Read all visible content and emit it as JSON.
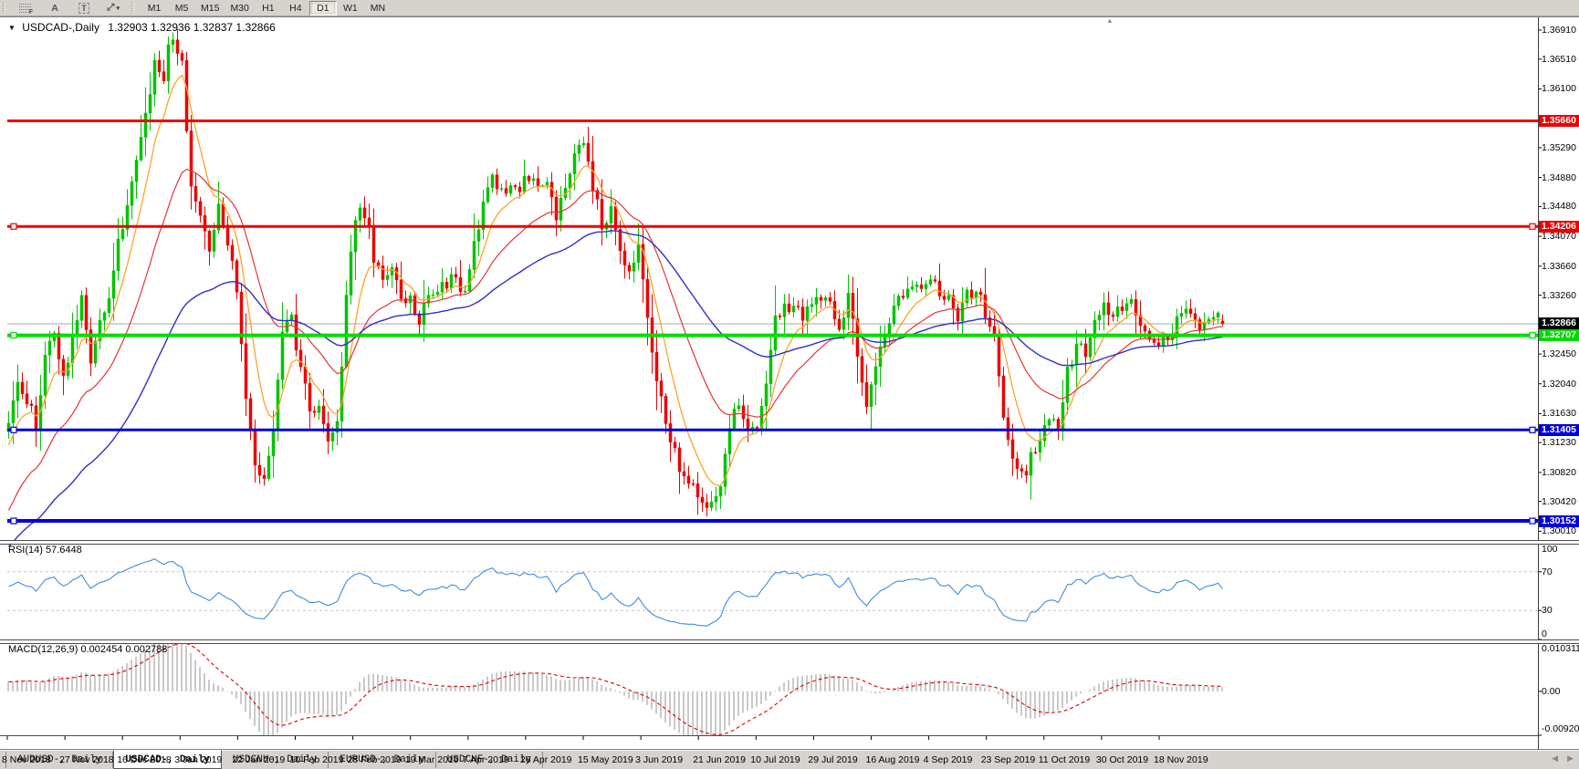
{
  "toolbar": {
    "tools": [
      {
        "name": "fibonacci-tool",
        "glyph": "F"
      },
      {
        "name": "text-label-tool",
        "glyph": "A"
      },
      {
        "name": "text-tool",
        "glyph": "T"
      },
      {
        "name": "arrows-tool",
        "glyph": "⤢",
        "caret": "▾"
      }
    ],
    "timeframes": [
      {
        "label": "M1",
        "active": false
      },
      {
        "label": "M5",
        "active": false
      },
      {
        "label": "M15",
        "active": false
      },
      {
        "label": "M30",
        "active": false
      },
      {
        "label": "H1",
        "active": false
      },
      {
        "label": "H4",
        "active": false
      },
      {
        "label": "D1",
        "active": true
      },
      {
        "label": "W1",
        "active": false
      },
      {
        "label": "MN",
        "active": false
      }
    ]
  },
  "chart": {
    "title": {
      "dropdown_glyph": "▼",
      "symbol": "USDCAD-,Daily",
      "ohlc": "1.32903 1.32936 1.32837 1.32866"
    },
    "shift_marker_glyph": "▲",
    "price_axis": {
      "ticks": [
        "1.36910",
        "1.36510",
        "1.36100",
        "1.35290",
        "1.34880",
        "1.34480",
        "1.34070",
        "1.33660",
        "1.33260",
        "1.32450",
        "1.32040",
        "1.31630",
        "1.31230",
        "1.30820",
        "1.30420",
        "1.30010"
      ]
    },
    "date_axis": {
      "labels": [
        "8 Nov 2018",
        "27 Nov 2018",
        "16 Dec 2018",
        "3 Jan 2019",
        "22 Jan 2019",
        "10 Feb 2019",
        "28 Feb 2019",
        "19 Mar 2019",
        "7 Apr 2019",
        "26 Apr 2019",
        "15 May 2019",
        "3 Jun 2019",
        "21 Jun 2019",
        "10 Jul 2019",
        "29 Jul 2019",
        "16 Aug 2019",
        "4 Sep 2019",
        "23 Sep 2019",
        "11 Oct 2019",
        "30 Oct 2019",
        "18 Nov 2019"
      ]
    }
  },
  "chart_data": {
    "type": "candlestick",
    "symbol": "USDCAD-",
    "timeframe": "Daily",
    "bars": 267,
    "last_bar": {
      "open": 1.32903,
      "high": 1.32936,
      "low": 1.32837,
      "close": 1.32866
    },
    "ylim": [
      1.29889,
      1.3706
    ],
    "price_path": [
      [
        0,
        1.315
      ],
      [
        2,
        1.3215
      ],
      [
        4,
        1.3185
      ],
      [
        6,
        1.315
      ],
      [
        8,
        1.324
      ],
      [
        10,
        1.328
      ],
      [
        12,
        1.3215
      ],
      [
        14,
        1.327
      ],
      [
        16,
        1.333
      ],
      [
        18,
        1.3225
      ],
      [
        20,
        1.329
      ],
      [
        22,
        1.333
      ],
      [
        24,
        1.3395
      ],
      [
        26,
        1.344
      ],
      [
        28,
        1.351
      ],
      [
        30,
        1.358
      ],
      [
        32,
        1.364
      ],
      [
        34,
        1.362
      ],
      [
        35,
        1.3675
      ],
      [
        37,
        1.366
      ],
      [
        38,
        1.364
      ],
      [
        40,
        1.3475
      ],
      [
        42,
        1.3445
      ],
      [
        44,
        1.338
      ],
      [
        46,
        1.3445
      ],
      [
        48,
        1.34
      ],
      [
        50,
        1.333
      ],
      [
        52,
        1.318
      ],
      [
        54,
        1.309
      ],
      [
        56,
        1.3065
      ],
      [
        58,
        1.315
      ],
      [
        60,
        1.328
      ],
      [
        62,
        1.329
      ],
      [
        64,
        1.323
      ],
      [
        66,
        1.317
      ],
      [
        68,
        1.317
      ],
      [
        70,
        1.3125
      ],
      [
        72,
        1.3145
      ],
      [
        74,
        1.332
      ],
      [
        76,
        1.3435
      ],
      [
        78,
        1.344
      ],
      [
        80,
        1.338
      ],
      [
        82,
        1.3345
      ],
      [
        84,
        1.3355
      ],
      [
        86,
        1.333
      ],
      [
        88,
        1.332
      ],
      [
        90,
        1.3295
      ],
      [
        92,
        1.332
      ],
      [
        94,
        1.3335
      ],
      [
        96,
        1.3345
      ],
      [
        98,
        1.335
      ],
      [
        100,
        1.333
      ],
      [
        102,
        1.34
      ],
      [
        104,
        1.345
      ],
      [
        106,
        1.3485
      ],
      [
        108,
        1.347
      ],
      [
        110,
        1.347
      ],
      [
        112,
        1.3478
      ],
      [
        114,
        1.349
      ],
      [
        116,
        1.3482
      ],
      [
        118,
        1.348
      ],
      [
        120,
        1.3438
      ],
      [
        122,
        1.348
      ],
      [
        124,
        1.3525
      ],
      [
        126,
        1.353
      ],
      [
        128,
        1.3478
      ],
      [
        130,
        1.342
      ],
      [
        132,
        1.3442
      ],
      [
        134,
        1.338
      ],
      [
        136,
        1.335
      ],
      [
        138,
        1.34
      ],
      [
        140,
        1.329
      ],
      [
        142,
        1.321
      ],
      [
        144,
        1.315
      ],
      [
        146,
        1.311
      ],
      [
        148,
        1.3072
      ],
      [
        150,
        1.3062
      ],
      [
        152,
        1.3037
      ],
      [
        154,
        1.3048
      ],
      [
        156,
        1.3065
      ],
      [
        158,
        1.314
      ],
      [
        160,
        1.318
      ],
      [
        162,
        1.3148
      ],
      [
        164,
        1.3152
      ],
      [
        166,
        1.3212
      ],
      [
        168,
        1.329
      ],
      [
        170,
        1.332
      ],
      [
        172,
        1.3302
      ],
      [
        174,
        1.33
      ],
      [
        176,
        1.332
      ],
      [
        178,
        1.3312
      ],
      [
        180,
        1.3322
      ],
      [
        182,
        1.327
      ],
      [
        184,
        1.3335
      ],
      [
        186,
        1.325
      ],
      [
        188,
        1.317
      ],
      [
        190,
        1.3225
      ],
      [
        192,
        1.327
      ],
      [
        194,
        1.332
      ],
      [
        196,
        1.3325
      ],
      [
        198,
        1.334
      ],
      [
        200,
        1.333
      ],
      [
        202,
        1.3342
      ],
      [
        204,
        1.3332
      ],
      [
        206,
        1.332
      ],
      [
        208,
        1.33
      ],
      [
        210,
        1.3325
      ],
      [
        212,
        1.333
      ],
      [
        214,
        1.3305
      ],
      [
        216,
        1.327
      ],
      [
        218,
        1.316
      ],
      [
        220,
        1.31
      ],
      [
        222,
        1.3075
      ],
      [
        224,
        1.31
      ],
      [
        226,
        1.3135
      ],
      [
        228,
        1.316
      ],
      [
        230,
        1.3142
      ],
      [
        232,
        1.3218
      ],
      [
        234,
        1.326
      ],
      [
        236,
        1.3242
      ],
      [
        238,
        1.329
      ],
      [
        240,
        1.331
      ],
      [
        242,
        1.33
      ],
      [
        244,
        1.3312
      ],
      [
        246,
        1.3322
      ],
      [
        248,
        1.3292
      ],
      [
        250,
        1.327
      ],
      [
        252,
        1.3256
      ],
      [
        254,
        1.3272
      ],
      [
        256,
        1.3292
      ],
      [
        258,
        1.33
      ],
      [
        260,
        1.329
      ],
      [
        262,
        1.3282
      ],
      [
        264,
        1.33
      ],
      [
        266,
        1.32866
      ]
    ],
    "horizontal_lines": [
      {
        "price": 1.3566,
        "label": "1.35660",
        "color": "#EE0000",
        "width": 3,
        "handles": false
      },
      {
        "price": 1.34206,
        "label": "1.34206",
        "color": "#EE0000",
        "width": 3,
        "handles": true
      },
      {
        "price": 1.32707,
        "label": "1.32707",
        "color": "#00DC00",
        "width": 4,
        "handles": true
      },
      {
        "price": 1.31405,
        "label": "1.31405",
        "color": "#0000DC",
        "width": 3,
        "handles": true
      },
      {
        "price": 1.30152,
        "label": "1.30152",
        "color": "#0000DC",
        "width": 4,
        "handles": true
      }
    ],
    "current_price": {
      "value": "1.32866",
      "price": 1.32866,
      "line_color": "#AAAAAA",
      "label_bg": "#000000",
      "label_fg": "#FFFFFF"
    },
    "moving_averages": [
      {
        "name": "fast",
        "period": 8,
        "color": "#FFA226"
      },
      {
        "name": "medium",
        "period": 24,
        "color": "#E53535"
      },
      {
        "name": "slow",
        "period": 60,
        "color": "#3030C8"
      }
    ]
  },
  "panes": {
    "rsi": {
      "label": "RSI(14)",
      "value": "57.6448",
      "line_color": "#3E8EDE",
      "levels": [
        70,
        30
      ],
      "range": [
        0,
        100
      ],
      "axis": [
        "100",
        "70",
        "30",
        "0"
      ]
    },
    "macd": {
      "label": "MACD(12,26,9)",
      "values": "0.002454 0.002788",
      "macd_value": 0.002454,
      "signal_value": 0.002788,
      "hist_color": "#C9C9C9",
      "signal_color": "#DF0000",
      "range": [
        -0.009203,
        0.010311
      ],
      "axis": [
        "0.010311",
        "0.00",
        "-0.009203"
      ]
    }
  },
  "tabs": {
    "items": [
      {
        "label": "AUDUSD-, Daily",
        "active": false
      },
      {
        "label": "USDCAD-, Daily",
        "active": true
      },
      {
        "label": "USDCNH-, Daily",
        "active": false
      },
      {
        "label": "EURUSD-, Daily",
        "active": false
      },
      {
        "label": "USDCHF-, Daily",
        "active": false
      }
    ],
    "scroll_left": "◀",
    "scroll_right": "▶"
  },
  "colors": {
    "bull": "#00C400",
    "bear": "#ED0000",
    "level_dash": "#C4C4C4",
    "chrome_bg": "#D6D3CE",
    "axis_text": "#000000"
  }
}
